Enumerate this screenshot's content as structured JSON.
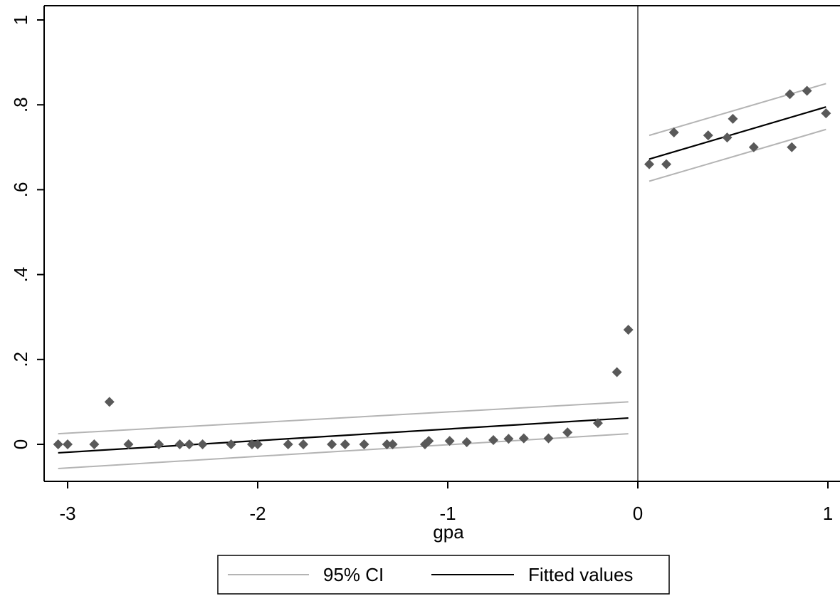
{
  "chart_data": {
    "type": "scatter",
    "title": "",
    "xlabel": "gpa",
    "ylabel": "",
    "xlim": [
      -3.08,
      1.08
    ],
    "ylim": [
      -0.09,
      1.04
    ],
    "xticks": [
      -3,
      -2,
      -1,
      0,
      1
    ],
    "xtick_labels": [
      "-3",
      "-2",
      "-1",
      "0",
      "1"
    ],
    "yticks": [
      0,
      0.2,
      0.4,
      0.6,
      0.8,
      1
    ],
    "ytick_labels": [
      "0",
      ".2",
      ".4",
      ".6",
      ".8",
      "1"
    ],
    "cutoff_x": 0,
    "grid": false,
    "legend_position": "bottom",
    "colors": {
      "points": "#595959",
      "fit": "#000000",
      "ci": "#b4b4b4",
      "frame": "#000000",
      "cutoff": "#404040"
    },
    "scatter_points": [
      {
        "x": -3.05,
        "y": 0.0
      },
      {
        "x": -3.0,
        "y": 0.0
      },
      {
        "x": -2.86,
        "y": 0.0
      },
      {
        "x": -2.78,
        "y": 0.1
      },
      {
        "x": -2.68,
        "y": 0.0
      },
      {
        "x": -2.52,
        "y": 0.0
      },
      {
        "x": -2.41,
        "y": 0.0
      },
      {
        "x": -2.36,
        "y": 0.0
      },
      {
        "x": -2.29,
        "y": 0.0
      },
      {
        "x": -2.14,
        "y": 0.0
      },
      {
        "x": -2.03,
        "y": 0.0
      },
      {
        "x": -2.0,
        "y": 0.0
      },
      {
        "x": -1.84,
        "y": 0.0
      },
      {
        "x": -1.76,
        "y": 0.0
      },
      {
        "x": -1.61,
        "y": 0.0
      },
      {
        "x": -1.54,
        "y": 0.0
      },
      {
        "x": -1.44,
        "y": 0.0
      },
      {
        "x": -1.32,
        "y": 0.0
      },
      {
        "x": -1.29,
        "y": 0.0
      },
      {
        "x": -1.12,
        "y": 0.0
      },
      {
        "x": -1.1,
        "y": 0.008
      },
      {
        "x": -0.99,
        "y": 0.008
      },
      {
        "x": -0.9,
        "y": 0.005
      },
      {
        "x": -0.76,
        "y": 0.01
      },
      {
        "x": -0.68,
        "y": 0.013
      },
      {
        "x": -0.6,
        "y": 0.014
      },
      {
        "x": -0.47,
        "y": 0.014
      },
      {
        "x": -0.37,
        "y": 0.028
      },
      {
        "x": -0.21,
        "y": 0.05
      },
      {
        "x": -0.11,
        "y": 0.17
      },
      {
        "x": -0.05,
        "y": 0.27
      },
      {
        "x": 0.06,
        "y": 0.66
      },
      {
        "x": 0.15,
        "y": 0.66
      },
      {
        "x": 0.19,
        "y": 0.735
      },
      {
        "x": 0.37,
        "y": 0.728
      },
      {
        "x": 0.47,
        "y": 0.723
      },
      {
        "x": 0.5,
        "y": 0.767
      },
      {
        "x": 0.61,
        "y": 0.7
      },
      {
        "x": 0.8,
        "y": 0.825
      },
      {
        "x": 0.81,
        "y": 0.7
      },
      {
        "x": 0.89,
        "y": 0.833
      },
      {
        "x": 0.99,
        "y": 0.78
      }
    ],
    "series": [
      {
        "name": "Fitted values",
        "segments": [
          [
            {
              "x": -3.05,
              "y": -0.02
            },
            {
              "x": -0.05,
              "y": 0.062
            }
          ],
          [
            {
              "x": 0.06,
              "y": 0.672
            },
            {
              "x": 0.99,
              "y": 0.795
            }
          ]
        ]
      },
      {
        "name": "95% CI",
        "upper": [
          [
            {
              "x": -3.05,
              "y": 0.025
            },
            {
              "x": -0.05,
              "y": 0.1
            }
          ],
          [
            {
              "x": 0.06,
              "y": 0.728
            },
            {
              "x": 0.99,
              "y": 0.85
            }
          ]
        ],
        "lower": [
          [
            {
              "x": -3.05,
              "y": -0.057
            },
            {
              "x": -0.05,
              "y": 0.025
            }
          ],
          [
            {
              "x": 0.06,
              "y": 0.62
            },
            {
              "x": 0.99,
              "y": 0.742
            }
          ]
        ]
      }
    ],
    "legend": [
      {
        "label": "95% CI",
        "style": "ci"
      },
      {
        "label": "Fitted values",
        "style": "fit"
      }
    ]
  }
}
